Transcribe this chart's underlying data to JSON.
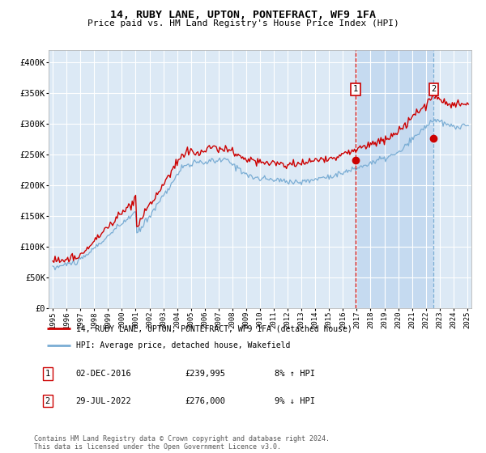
{
  "title": "14, RUBY LANE, UPTON, PONTEFRACT, WF9 1FA",
  "subtitle": "Price paid vs. HM Land Registry's House Price Index (HPI)",
  "legend_entry1": "14, RUBY LANE, UPTON, PONTEFRACT, WF9 1FA (detached house)",
  "legend_entry2": "HPI: Average price, detached house, Wakefield",
  "annotation1_label": "1",
  "annotation1_date": "02-DEC-2016",
  "annotation1_price": "£239,995",
  "annotation1_hpi": "8% ↑ HPI",
  "annotation1_year": 2016.92,
  "annotation1_value": 239995,
  "annotation2_label": "2",
  "annotation2_date": "29-JUL-2022",
  "annotation2_price": "£276,000",
  "annotation2_hpi": "9% ↓ HPI",
  "annotation2_year": 2022.57,
  "annotation2_value": 276000,
  "background_color": "#ffffff",
  "plot_bg_color": "#dce9f5",
  "shaded_region_color": "#c5daf0",
  "hatch_region_color": "#dce9f5",
  "grid_color": "#ffffff",
  "line1_color": "#cc0000",
  "line2_color": "#7aadd4",
  "marker_color": "#cc0000",
  "vline1_color": "#cc0000",
  "vline2_color": "#7aadd4",
  "annotation_box_color": "#cc0000",
  "footnote": "Contains HM Land Registry data © Crown copyright and database right 2024.\nThis data is licensed under the Open Government Licence v3.0.",
  "ylim_max": 420000,
  "ylim_min": 0,
  "year_start": 1995,
  "year_end": 2025
}
